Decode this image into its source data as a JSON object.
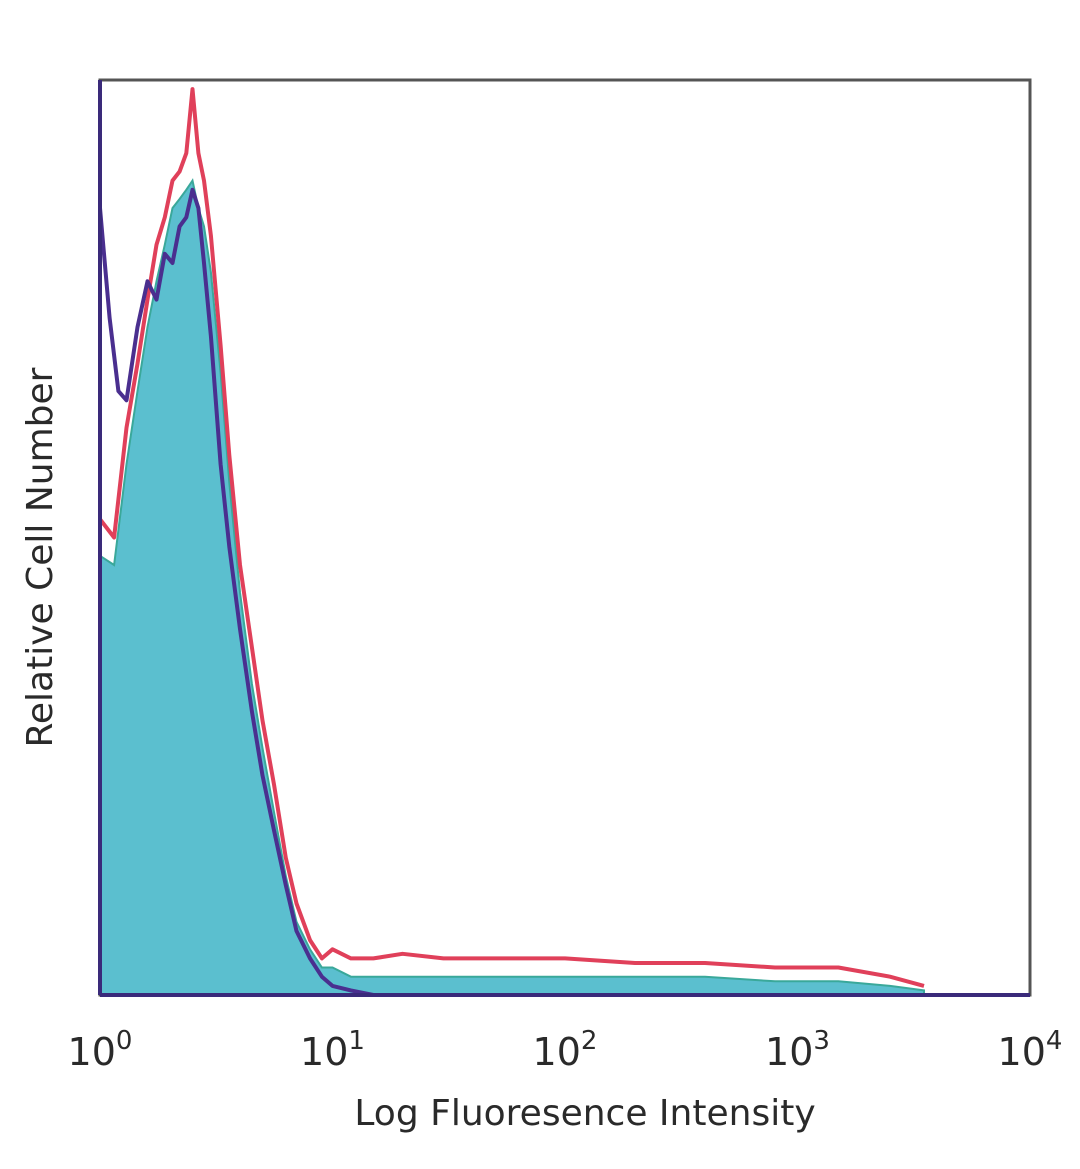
{
  "chart_data": {
    "type": "area",
    "xlabel": "Log Fluoresence Intensity",
    "ylabel": "Relative Cell Number",
    "xscale": "log",
    "xlim": [
      1,
      10000
    ],
    "ylim": [
      0,
      1
    ],
    "xticks": [
      {
        "value": 1,
        "base": "10",
        "exp": "0"
      },
      {
        "value": 10,
        "base": "10",
        "exp": "1"
      },
      {
        "value": 100,
        "base": "10",
        "exp": "2"
      },
      {
        "value": 1000,
        "base": "10",
        "exp": "3"
      },
      {
        "value": 10000,
        "base": "10",
        "exp": "4"
      }
    ],
    "grid": false,
    "legend": "none",
    "series": [
      {
        "color": "#5bbfcf",
        "style": "filled",
        "x": [
          1.0,
          1.15,
          1.3,
          1.45,
          1.6,
          1.75,
          1.9,
          2.05,
          2.2,
          2.35,
          2.5,
          2.65,
          2.8,
          3.0,
          3.3,
          3.6,
          4.0,
          4.5,
          5.0,
          5.6,
          6.3,
          7.0,
          8.0,
          9.0,
          10.0,
          12.0,
          15.0,
          20.0,
          30.0,
          50.0,
          100.0,
          200.0,
          400.0,
          800.0,
          1500.0,
          2500.0,
          3500.0
        ],
        "y": [
          0.48,
          0.47,
          0.58,
          0.66,
          0.73,
          0.78,
          0.82,
          0.86,
          0.87,
          0.88,
          0.89,
          0.86,
          0.84,
          0.79,
          0.68,
          0.56,
          0.44,
          0.34,
          0.27,
          0.2,
          0.13,
          0.08,
          0.05,
          0.03,
          0.03,
          0.02,
          0.02,
          0.02,
          0.02,
          0.02,
          0.02,
          0.02,
          0.02,
          0.015,
          0.015,
          0.01,
          0.005
        ]
      },
      {
        "color": "#e0405a",
        "style": "line",
        "x": [
          1.0,
          1.15,
          1.3,
          1.45,
          1.6,
          1.75,
          1.9,
          2.05,
          2.2,
          2.35,
          2.5,
          2.65,
          2.8,
          3.0,
          3.3,
          3.6,
          4.0,
          4.5,
          5.0,
          5.6,
          6.3,
          7.0,
          8.0,
          9.0,
          10.0,
          12.0,
          15.0,
          20.0,
          30.0,
          50.0,
          100.0,
          200.0,
          400.0,
          800.0,
          1500.0,
          2500.0,
          3500.0
        ],
        "y": [
          0.52,
          0.5,
          0.62,
          0.69,
          0.76,
          0.82,
          0.85,
          0.89,
          0.9,
          0.92,
          0.99,
          0.92,
          0.89,
          0.83,
          0.71,
          0.59,
          0.47,
          0.38,
          0.3,
          0.23,
          0.15,
          0.1,
          0.06,
          0.04,
          0.05,
          0.04,
          0.04,
          0.045,
          0.04,
          0.04,
          0.04,
          0.035,
          0.035,
          0.03,
          0.03,
          0.02,
          0.01
        ]
      },
      {
        "color": "#4a2f8f",
        "style": "line",
        "x": [
          1.0,
          1.1,
          1.2,
          1.3,
          1.45,
          1.6,
          1.75,
          1.9,
          2.05,
          2.2,
          2.35,
          2.5,
          2.65,
          2.8,
          3.0,
          3.3,
          3.6,
          4.0,
          4.5,
          5.0,
          5.6,
          6.3,
          7.0,
          8.0,
          9.0,
          10.0,
          12.0,
          15.0,
          20.0,
          30.0
        ],
        "y": [
          0.86,
          0.74,
          0.66,
          0.65,
          0.73,
          0.78,
          0.76,
          0.81,
          0.8,
          0.84,
          0.85,
          0.88,
          0.86,
          0.8,
          0.72,
          0.58,
          0.49,
          0.4,
          0.31,
          0.24,
          0.18,
          0.12,
          0.07,
          0.04,
          0.02,
          0.01,
          0.005,
          0.0,
          0.0,
          0.0
        ]
      }
    ]
  }
}
